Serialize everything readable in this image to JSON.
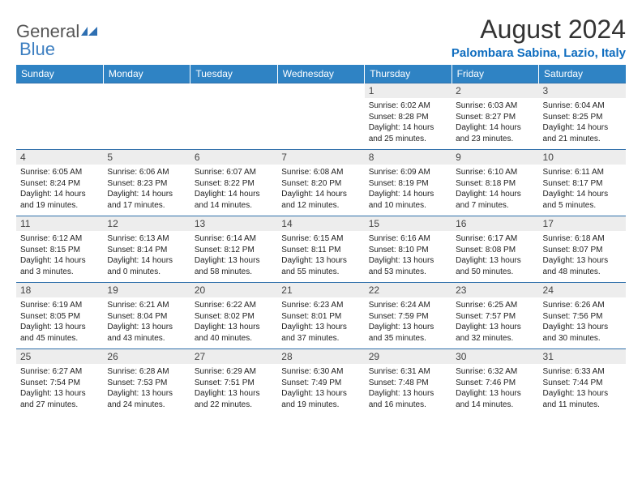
{
  "logo": {
    "general": "General",
    "blue": "Blue"
  },
  "title": "August 2024",
  "location": "Palombara Sabina, Lazio, Italy",
  "weekday_labels": [
    "Sunday",
    "Monday",
    "Tuesday",
    "Wednesday",
    "Thursday",
    "Friday",
    "Saturday"
  ],
  "colors": {
    "header_bg": "#2f83c4",
    "header_fg": "#ffffff",
    "daynum_bg": "#ededed",
    "border": "#2f6faa",
    "accent": "#0f6dbf"
  },
  "weeks": [
    [
      null,
      null,
      null,
      null,
      {
        "n": "1",
        "sunrise": "Sunrise: 6:02 AM",
        "sunset": "Sunset: 8:28 PM",
        "daylight": "Daylight: 14 hours and 25 minutes."
      },
      {
        "n": "2",
        "sunrise": "Sunrise: 6:03 AM",
        "sunset": "Sunset: 8:27 PM",
        "daylight": "Daylight: 14 hours and 23 minutes."
      },
      {
        "n": "3",
        "sunrise": "Sunrise: 6:04 AM",
        "sunset": "Sunset: 8:25 PM",
        "daylight": "Daylight: 14 hours and 21 minutes."
      }
    ],
    [
      {
        "n": "4",
        "sunrise": "Sunrise: 6:05 AM",
        "sunset": "Sunset: 8:24 PM",
        "daylight": "Daylight: 14 hours and 19 minutes."
      },
      {
        "n": "5",
        "sunrise": "Sunrise: 6:06 AM",
        "sunset": "Sunset: 8:23 PM",
        "daylight": "Daylight: 14 hours and 17 minutes."
      },
      {
        "n": "6",
        "sunrise": "Sunrise: 6:07 AM",
        "sunset": "Sunset: 8:22 PM",
        "daylight": "Daylight: 14 hours and 14 minutes."
      },
      {
        "n": "7",
        "sunrise": "Sunrise: 6:08 AM",
        "sunset": "Sunset: 8:20 PM",
        "daylight": "Daylight: 14 hours and 12 minutes."
      },
      {
        "n": "8",
        "sunrise": "Sunrise: 6:09 AM",
        "sunset": "Sunset: 8:19 PM",
        "daylight": "Daylight: 14 hours and 10 minutes."
      },
      {
        "n": "9",
        "sunrise": "Sunrise: 6:10 AM",
        "sunset": "Sunset: 8:18 PM",
        "daylight": "Daylight: 14 hours and 7 minutes."
      },
      {
        "n": "10",
        "sunrise": "Sunrise: 6:11 AM",
        "sunset": "Sunset: 8:17 PM",
        "daylight": "Daylight: 14 hours and 5 minutes."
      }
    ],
    [
      {
        "n": "11",
        "sunrise": "Sunrise: 6:12 AM",
        "sunset": "Sunset: 8:15 PM",
        "daylight": "Daylight: 14 hours and 3 minutes."
      },
      {
        "n": "12",
        "sunrise": "Sunrise: 6:13 AM",
        "sunset": "Sunset: 8:14 PM",
        "daylight": "Daylight: 14 hours and 0 minutes."
      },
      {
        "n": "13",
        "sunrise": "Sunrise: 6:14 AM",
        "sunset": "Sunset: 8:12 PM",
        "daylight": "Daylight: 13 hours and 58 minutes."
      },
      {
        "n": "14",
        "sunrise": "Sunrise: 6:15 AM",
        "sunset": "Sunset: 8:11 PM",
        "daylight": "Daylight: 13 hours and 55 minutes."
      },
      {
        "n": "15",
        "sunrise": "Sunrise: 6:16 AM",
        "sunset": "Sunset: 8:10 PM",
        "daylight": "Daylight: 13 hours and 53 minutes."
      },
      {
        "n": "16",
        "sunrise": "Sunrise: 6:17 AM",
        "sunset": "Sunset: 8:08 PM",
        "daylight": "Daylight: 13 hours and 50 minutes."
      },
      {
        "n": "17",
        "sunrise": "Sunrise: 6:18 AM",
        "sunset": "Sunset: 8:07 PM",
        "daylight": "Daylight: 13 hours and 48 minutes."
      }
    ],
    [
      {
        "n": "18",
        "sunrise": "Sunrise: 6:19 AM",
        "sunset": "Sunset: 8:05 PM",
        "daylight": "Daylight: 13 hours and 45 minutes."
      },
      {
        "n": "19",
        "sunrise": "Sunrise: 6:21 AM",
        "sunset": "Sunset: 8:04 PM",
        "daylight": "Daylight: 13 hours and 43 minutes."
      },
      {
        "n": "20",
        "sunrise": "Sunrise: 6:22 AM",
        "sunset": "Sunset: 8:02 PM",
        "daylight": "Daylight: 13 hours and 40 minutes."
      },
      {
        "n": "21",
        "sunrise": "Sunrise: 6:23 AM",
        "sunset": "Sunset: 8:01 PM",
        "daylight": "Daylight: 13 hours and 37 minutes."
      },
      {
        "n": "22",
        "sunrise": "Sunrise: 6:24 AM",
        "sunset": "Sunset: 7:59 PM",
        "daylight": "Daylight: 13 hours and 35 minutes."
      },
      {
        "n": "23",
        "sunrise": "Sunrise: 6:25 AM",
        "sunset": "Sunset: 7:57 PM",
        "daylight": "Daylight: 13 hours and 32 minutes."
      },
      {
        "n": "24",
        "sunrise": "Sunrise: 6:26 AM",
        "sunset": "Sunset: 7:56 PM",
        "daylight": "Daylight: 13 hours and 30 minutes."
      }
    ],
    [
      {
        "n": "25",
        "sunrise": "Sunrise: 6:27 AM",
        "sunset": "Sunset: 7:54 PM",
        "daylight": "Daylight: 13 hours and 27 minutes."
      },
      {
        "n": "26",
        "sunrise": "Sunrise: 6:28 AM",
        "sunset": "Sunset: 7:53 PM",
        "daylight": "Daylight: 13 hours and 24 minutes."
      },
      {
        "n": "27",
        "sunrise": "Sunrise: 6:29 AM",
        "sunset": "Sunset: 7:51 PM",
        "daylight": "Daylight: 13 hours and 22 minutes."
      },
      {
        "n": "28",
        "sunrise": "Sunrise: 6:30 AM",
        "sunset": "Sunset: 7:49 PM",
        "daylight": "Daylight: 13 hours and 19 minutes."
      },
      {
        "n": "29",
        "sunrise": "Sunrise: 6:31 AM",
        "sunset": "Sunset: 7:48 PM",
        "daylight": "Daylight: 13 hours and 16 minutes."
      },
      {
        "n": "30",
        "sunrise": "Sunrise: 6:32 AM",
        "sunset": "Sunset: 7:46 PM",
        "daylight": "Daylight: 13 hours and 14 minutes."
      },
      {
        "n": "31",
        "sunrise": "Sunrise: 6:33 AM",
        "sunset": "Sunset: 7:44 PM",
        "daylight": "Daylight: 13 hours and 11 minutes."
      }
    ]
  ]
}
